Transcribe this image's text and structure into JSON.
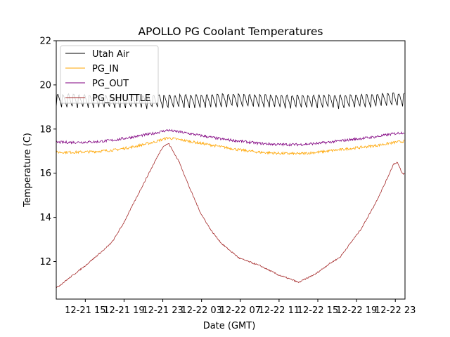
{
  "chart_data": {
    "type": "line",
    "title": "APOLLO PG Coolant Temperatures",
    "xlabel": "Date (GMT)",
    "ylabel": "Temperature (C)",
    "x_units": "hours since 12-21 00:00 GMT",
    "xlim": [
      12,
      48
    ],
    "ylim": [
      10.3,
      22
    ],
    "grid": false,
    "legend_position": "top-left",
    "x_ticks": [
      {
        "value": 15,
        "label": "12-21 15"
      },
      {
        "value": 19,
        "label": "12-21 19"
      },
      {
        "value": 23,
        "label": "12-21 23"
      },
      {
        "value": 27,
        "label": "12-22 03"
      },
      {
        "value": 31,
        "label": "12-22 07"
      },
      {
        "value": 35,
        "label": "12-22 11"
      },
      {
        "value": 39,
        "label": "12-22 15"
      },
      {
        "value": 43,
        "label": "12-22 19"
      },
      {
        "value": 47,
        "label": "12-22 23"
      }
    ],
    "y_ticks": [
      {
        "value": 12,
        "label": "12"
      },
      {
        "value": 14,
        "label": "14"
      },
      {
        "value": 16,
        "label": "16"
      },
      {
        "value": 18,
        "label": "18"
      },
      {
        "value": 20,
        "label": "20"
      },
      {
        "value": 22,
        "label": "22"
      }
    ],
    "series": [
      {
        "name": "Utah Air",
        "color": "#000000",
        "style": "sawtooth",
        "oscillation": {
          "low": 19.0,
          "high": 19.75,
          "period_hours": 0.55
        },
        "x": [
          12,
          18,
          24,
          30,
          36,
          42,
          48
        ],
        "y": [
          19.35,
          19.3,
          19.3,
          19.35,
          19.3,
          19.3,
          19.4
        ]
      },
      {
        "name": "PG_IN",
        "color": "#FFA500",
        "x": [
          12,
          14,
          16,
          18,
          20,
          22,
          23.5,
          25,
          27,
          29,
          31,
          33,
          35,
          37,
          39,
          41,
          43,
          45,
          47,
          48
        ],
        "y": [
          16.95,
          16.95,
          16.98,
          17.05,
          17.2,
          17.4,
          17.6,
          17.5,
          17.35,
          17.2,
          17.05,
          16.95,
          16.9,
          16.88,
          16.95,
          17.05,
          17.15,
          17.25,
          17.4,
          17.45
        ]
      },
      {
        "name": "PG_OUT",
        "color": "#800080",
        "x": [
          12,
          14,
          16,
          18,
          20,
          22,
          23.5,
          25,
          27,
          29,
          31,
          33,
          35,
          37,
          39,
          41,
          43,
          45,
          47,
          48
        ],
        "y": [
          17.4,
          17.4,
          17.42,
          17.5,
          17.65,
          17.8,
          17.95,
          17.85,
          17.7,
          17.55,
          17.45,
          17.35,
          17.3,
          17.3,
          17.35,
          17.45,
          17.55,
          17.65,
          17.8,
          17.85
        ]
      },
      {
        "name": "PG_SHUTTLE",
        "color": "#A52A2A",
        "x": [
          12,
          14.9,
          17.1,
          17.8,
          18.9,
          20.0,
          21.1,
          22.5,
          23.0,
          23.6,
          24.7,
          25.8,
          26.9,
          28.0,
          29.1,
          30.9,
          33.1,
          34.9,
          36.5,
          37.0,
          38.8,
          40.2,
          41.3,
          42.4,
          43.5,
          44.9,
          46.0,
          46.8,
          47.2,
          47.7,
          48.0
        ],
        "y": [
          10.8,
          11.78,
          12.6,
          12.9,
          13.7,
          14.65,
          15.6,
          16.8,
          17.2,
          17.35,
          16.5,
          15.3,
          14.2,
          13.4,
          12.8,
          12.15,
          11.8,
          11.4,
          11.15,
          11.05,
          11.45,
          11.9,
          12.2,
          12.85,
          13.5,
          14.6,
          15.6,
          16.4,
          16.5,
          16.0,
          15.95
        ]
      }
    ]
  }
}
